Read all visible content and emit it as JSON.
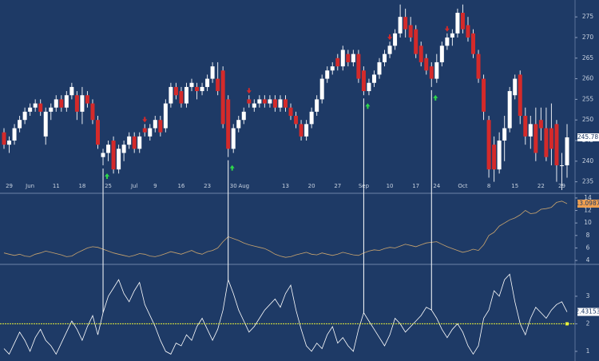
{
  "chart_data": [
    {
      "type": "candlestick",
      "categories": [
        null,
        "29",
        null,
        null,
        null,
        "Jun",
        null,
        null,
        null,
        null,
        "11",
        null,
        null,
        null,
        null,
        "18",
        null,
        null,
        null,
        null,
        "25",
        null,
        null,
        null,
        null,
        "Jul",
        null,
        null,
        null,
        "9",
        null,
        null,
        null,
        null,
        "16",
        null,
        null,
        null,
        null,
        "23",
        null,
        null,
        null,
        null,
        "30",
        null,
        "Aug",
        null,
        null,
        null,
        null,
        null,
        null,
        null,
        "13",
        null,
        null,
        null,
        null,
        "20",
        null,
        null,
        null,
        null,
        "27",
        null,
        null,
        null,
        null,
        "Sep",
        null,
        null,
        null,
        null,
        "10",
        null,
        null,
        null,
        null,
        "17",
        null,
        null,
        null,
        "24",
        null,
        null,
        null,
        null,
        "Oct",
        null,
        null,
        null,
        null,
        "8",
        null,
        null,
        null,
        null,
        "15",
        null,
        null,
        null,
        null,
        "22",
        null,
        null,
        null,
        "29",
        null
      ],
      "candles": [
        [
          247,
          248,
          243,
          244
        ],
        [
          244,
          246,
          242,
          245
        ],
        [
          245,
          249,
          244,
          248
        ],
        [
          248,
          251,
          247,
          250
        ],
        [
          250,
          253,
          249,
          252
        ],
        [
          252,
          254,
          251,
          253
        ],
        [
          253,
          255,
          252,
          254
        ],
        [
          254,
          255,
          251,
          252
        ],
        [
          246,
          253,
          244,
          252
        ],
        [
          252,
          254,
          250,
          253
        ],
        [
          253,
          256,
          252,
          255
        ],
        [
          255,
          256,
          252,
          253
        ],
        [
          253,
          257,
          252,
          256
        ],
        [
          256,
          259,
          255,
          258
        ],
        [
          256,
          257,
          250,
          252
        ],
        [
          252,
          258,
          249,
          256
        ],
        [
          256,
          257,
          253,
          254
        ],
        [
          254,
          255,
          249,
          250
        ],
        [
          250,
          251,
          243,
          244
        ],
        [
          241,
          243,
          239,
          242
        ],
        [
          242,
          245,
          240,
          244
        ],
        [
          245,
          246,
          237,
          238
        ],
        [
          238,
          244,
          237,
          243
        ],
        [
          242,
          245,
          240,
          244
        ],
        [
          244,
          247,
          243,
          246
        ],
        [
          246,
          247,
          242,
          243
        ],
        [
          243,
          247,
          242,
          246
        ],
        [
          248,
          249,
          246,
          247
        ],
        [
          246,
          249,
          245,
          248
        ],
        [
          248,
          251,
          247,
          250
        ],
        [
          250,
          251,
          246,
          247
        ],
        [
          248,
          255,
          247,
          254
        ],
        [
          254,
          259,
          253,
          258
        ],
        [
          258,
          259,
          255,
          256
        ],
        [
          257,
          258,
          253,
          254
        ],
        [
          254,
          259,
          253,
          258
        ],
        [
          258,
          260,
          257,
          259
        ],
        [
          258,
          259,
          255,
          257
        ],
        [
          257,
          259,
          256,
          258
        ],
        [
          258,
          261,
          257,
          260
        ],
        [
          260,
          264,
          259,
          263
        ],
        [
          260,
          264,
          256,
          257
        ],
        [
          262,
          263,
          248,
          249
        ],
        [
          255,
          256,
          241,
          243
        ],
        [
          243,
          249,
          242,
          248
        ],
        [
          248,
          251,
          247,
          250
        ],
        [
          250,
          253,
          249,
          252
        ],
        [
          255,
          256,
          253,
          254
        ],
        [
          253,
          255,
          252,
          254
        ],
        [
          254,
          256,
          253,
          255
        ],
        [
          255,
          256,
          253,
          254
        ],
        [
          254,
          256,
          253,
          255
        ],
        [
          255,
          256,
          252,
          253
        ],
        [
          253,
          256,
          252,
          255
        ],
        [
          255,
          256,
          252,
          253
        ],
        [
          253,
          254,
          250,
          251
        ],
        [
          251,
          252,
          248,
          249
        ],
        [
          249,
          250,
          245,
          246
        ],
        [
          246,
          250,
          245,
          249
        ],
        [
          249,
          253,
          248,
          252
        ],
        [
          252,
          256,
          251,
          255
        ],
        [
          255,
          261,
          254,
          260
        ],
        [
          260,
          263,
          259,
          262
        ],
        [
          262,
          264,
          261,
          263
        ],
        [
          265,
          266,
          262,
          263
        ],
        [
          263,
          268,
          262,
          267
        ],
        [
          266,
          267,
          263,
          264
        ],
        [
          264,
          267,
          263,
          266
        ],
        [
          266,
          267,
          259,
          260
        ],
        [
          262,
          263,
          256,
          257
        ],
        [
          257,
          260,
          256,
          259
        ],
        [
          259,
          262,
          258,
          261
        ],
        [
          261,
          265,
          260,
          264
        ],
        [
          264,
          267,
          263,
          266
        ],
        [
          266,
          269,
          265,
          268
        ],
        [
          268,
          272,
          267,
          271
        ],
        [
          271,
          278,
          270,
          275
        ],
        [
          275,
          277,
          270,
          272
        ],
        [
          273,
          275,
          269,
          270
        ],
        [
          272,
          273,
          265,
          266
        ],
        [
          268,
          269,
          263,
          264
        ],
        [
          265,
          266,
          261,
          262
        ],
        [
          263,
          264,
          258,
          260
        ],
        [
          260,
          266,
          259,
          264
        ],
        [
          264,
          269,
          263,
          268
        ],
        [
          268,
          271,
          267,
          270
        ],
        [
          270,
          272,
          268,
          271
        ],
        [
          271,
          277,
          270,
          276
        ],
        [
          276,
          278,
          271,
          272
        ],
        [
          273,
          275,
          269,
          270
        ],
        [
          271,
          272,
          265,
          266
        ],
        [
          266,
          267,
          259,
          260
        ],
        [
          260,
          261,
          250,
          252
        ],
        [
          250,
          251,
          236,
          238
        ],
        [
          244,
          246,
          235,
          238
        ],
        [
          238,
          247,
          237,
          245
        ],
        [
          245,
          251,
          240,
          248
        ],
        [
          248,
          258,
          247,
          257
        ],
        [
          256,
          261,
          255,
          260
        ],
        [
          261,
          262,
          249,
          251
        ],
        [
          251,
          253,
          244,
          246
        ],
        [
          246,
          251,
          243,
          249
        ],
        [
          249,
          253,
          240,
          242
        ],
        [
          250,
          253,
          245,
          248
        ],
        [
          248,
          253,
          240,
          241
        ],
        [
          248,
          254,
          239,
          243
        ],
        [
          249,
          250,
          235,
          239
        ],
        [
          239,
          242,
          233,
          239
        ],
        [
          239,
          249,
          236,
          245.78
        ]
      ],
      "up_color": "#ffffff",
      "down_color": "#d42a2a",
      "ylim": [
        232.6,
        279.1
      ],
      "yticks": [
        235,
        240,
        245,
        250,
        255,
        260,
        265,
        270,
        275
      ]
    },
    {
      "type": "line",
      "color": "#c9a46e",
      "values": [
        5.2,
        5,
        4.8,
        5,
        4.7,
        4.6,
        5,
        5.2,
        5.5,
        5.3,
        5.1,
        4.9,
        4.6,
        4.7,
        5.2,
        5.6,
        6,
        6.2,
        6.1,
        5.8,
        5.5,
        5.2,
        5,
        4.8,
        4.6,
        4.8,
        5.1,
        5,
        4.7,
        4.6,
        4.8,
        5.1,
        5.4,
        5.2,
        5,
        5.3,
        5.6,
        5.2,
        5,
        5.4,
        5.6,
        6,
        7,
        7.8,
        7.5,
        7.2,
        6.8,
        6.5,
        6.3,
        6.1,
        5.9,
        5.5,
        5,
        4.7,
        4.5,
        4.6,
        4.9,
        5.1,
        5.3,
        5,
        4.9,
        5.2,
        5,
        4.8,
        5,
        5.3,
        5.1,
        4.9,
        4.8,
        5.2,
        5.5,
        5.7,
        5.6,
        5.9,
        6.1,
        6,
        6.3,
        6.6,
        6.4,
        6.2,
        6.5,
        6.8,
        6.9,
        7,
        6.6,
        6.2,
        5.9,
        5.6,
        5.3,
        5.5,
        5.8,
        5.6,
        6.5,
        8,
        8.5,
        9.5,
        10,
        10.5,
        10.8,
        11.3,
        12,
        11.5,
        11.6,
        12.2,
        12.3,
        12.5,
        13.3,
        13.5,
        13.0987
      ],
      "ylim": [
        3.5,
        14.5
      ],
      "yticks": [
        4,
        6,
        8,
        10,
        12,
        14
      ]
    },
    {
      "type": "line",
      "color": "#ffffff",
      "values": [
        1.1,
        0.9,
        1.3,
        1.7,
        1.4,
        1.0,
        1.5,
        1.8,
        1.4,
        1.2,
        0.9,
        1.3,
        1.7,
        2.1,
        1.8,
        1.4,
        1.9,
        2.3,
        1.6,
        2.4,
        3.0,
        3.3,
        3.6,
        3.1,
        2.8,
        3.2,
        3.5,
        2.7,
        2.3,
        1.9,
        1.4,
        1.0,
        0.9,
        1.3,
        1.2,
        1.6,
        1.4,
        1.9,
        2.2,
        1.8,
        1.4,
        1.8,
        2.5,
        3.6,
        3.1,
        2.5,
        2.1,
        1.7,
        1.9,
        2.2,
        2.5,
        2.7,
        2.9,
        2.6,
        3.1,
        3.4,
        2.5,
        1.8,
        1.2,
        1.0,
        1.3,
        1.1,
        1.6,
        1.9,
        1.3,
        1.5,
        1.2,
        1.0,
        1.8,
        2.4,
        2.1,
        1.8,
        1.5,
        1.2,
        1.6,
        2.2,
        2.0,
        1.7,
        1.9,
        2.1,
        2.3,
        2.6,
        2.5,
        2.2,
        1.8,
        1.5,
        1.8,
        2.0,
        1.7,
        1.2,
        0.9,
        1.2,
        2.2,
        2.5,
        3.2,
        3.0,
        3.6,
        3.8,
        2.8,
        2.0,
        1.6,
        2.2,
        2.6,
        2.4,
        2.2,
        2.5,
        2.7,
        2.8,
        2.43153
      ],
      "threshold": 2,
      "threshold_color": "#e8f03a",
      "ylim": [
        0.65,
        4.1
      ],
      "yticks": [
        1,
        2,
        3
      ]
    }
  ]
}
